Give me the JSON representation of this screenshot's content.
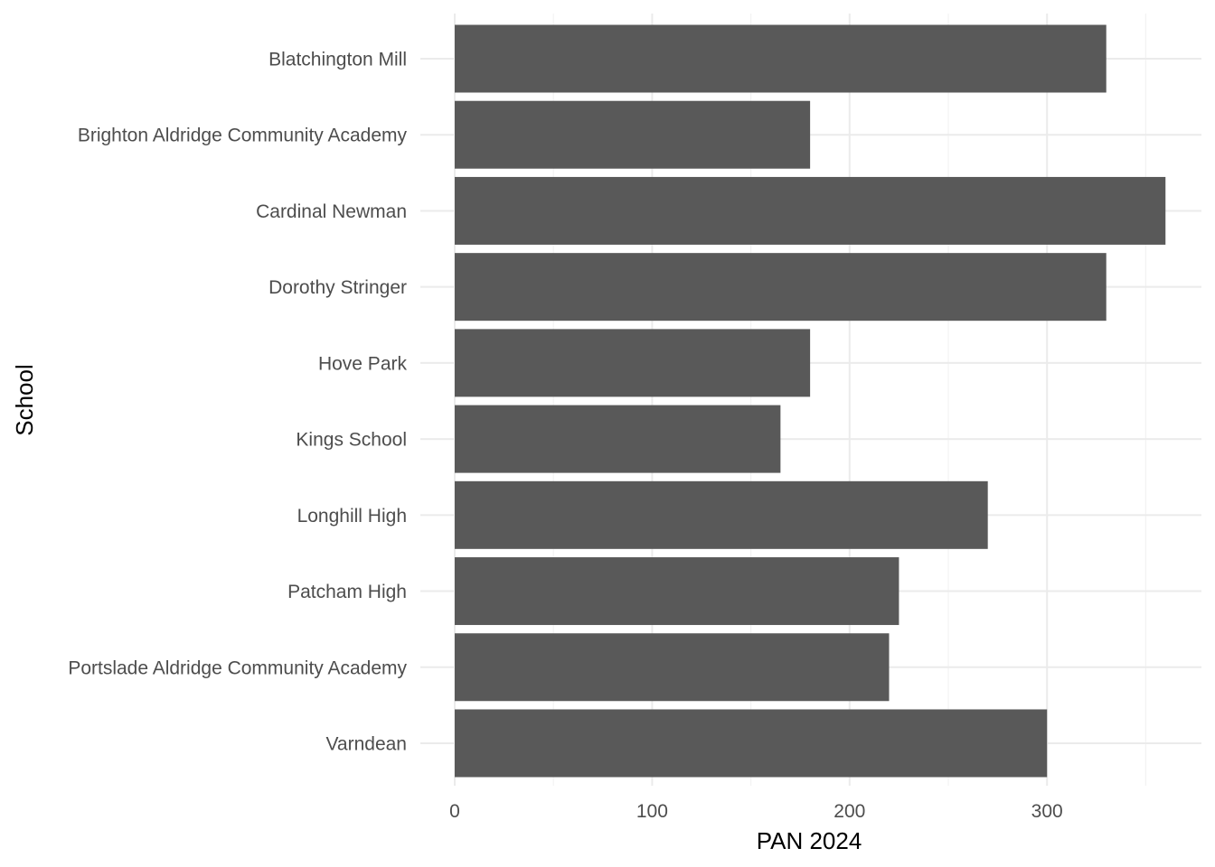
{
  "chart_data": {
    "type": "bar",
    "orientation": "horizontal",
    "title": "",
    "xlabel": "PAN 2024",
    "ylabel": "School",
    "xlim": [
      0,
      375
    ],
    "x_ticks": [
      0,
      100,
      200,
      300
    ],
    "grid": true,
    "categories": [
      "Blatchington Mill",
      "Brighton Aldridge Community Academy",
      "Cardinal Newman",
      "Dorothy Stringer",
      "Hove Park",
      "Kings School",
      "Longhill High",
      "Patcham High",
      "Portslade Aldridge Community Academy",
      "Varndean"
    ],
    "values": [
      330,
      180,
      360,
      330,
      180,
      165,
      270,
      225,
      220,
      300
    ],
    "colors": {
      "bar": "#595959",
      "grid_major": "#ebebeb",
      "grid_minor": "#f3f3f3",
      "tick_text": "#4d4d4d",
      "title_text": "#000000"
    }
  }
}
